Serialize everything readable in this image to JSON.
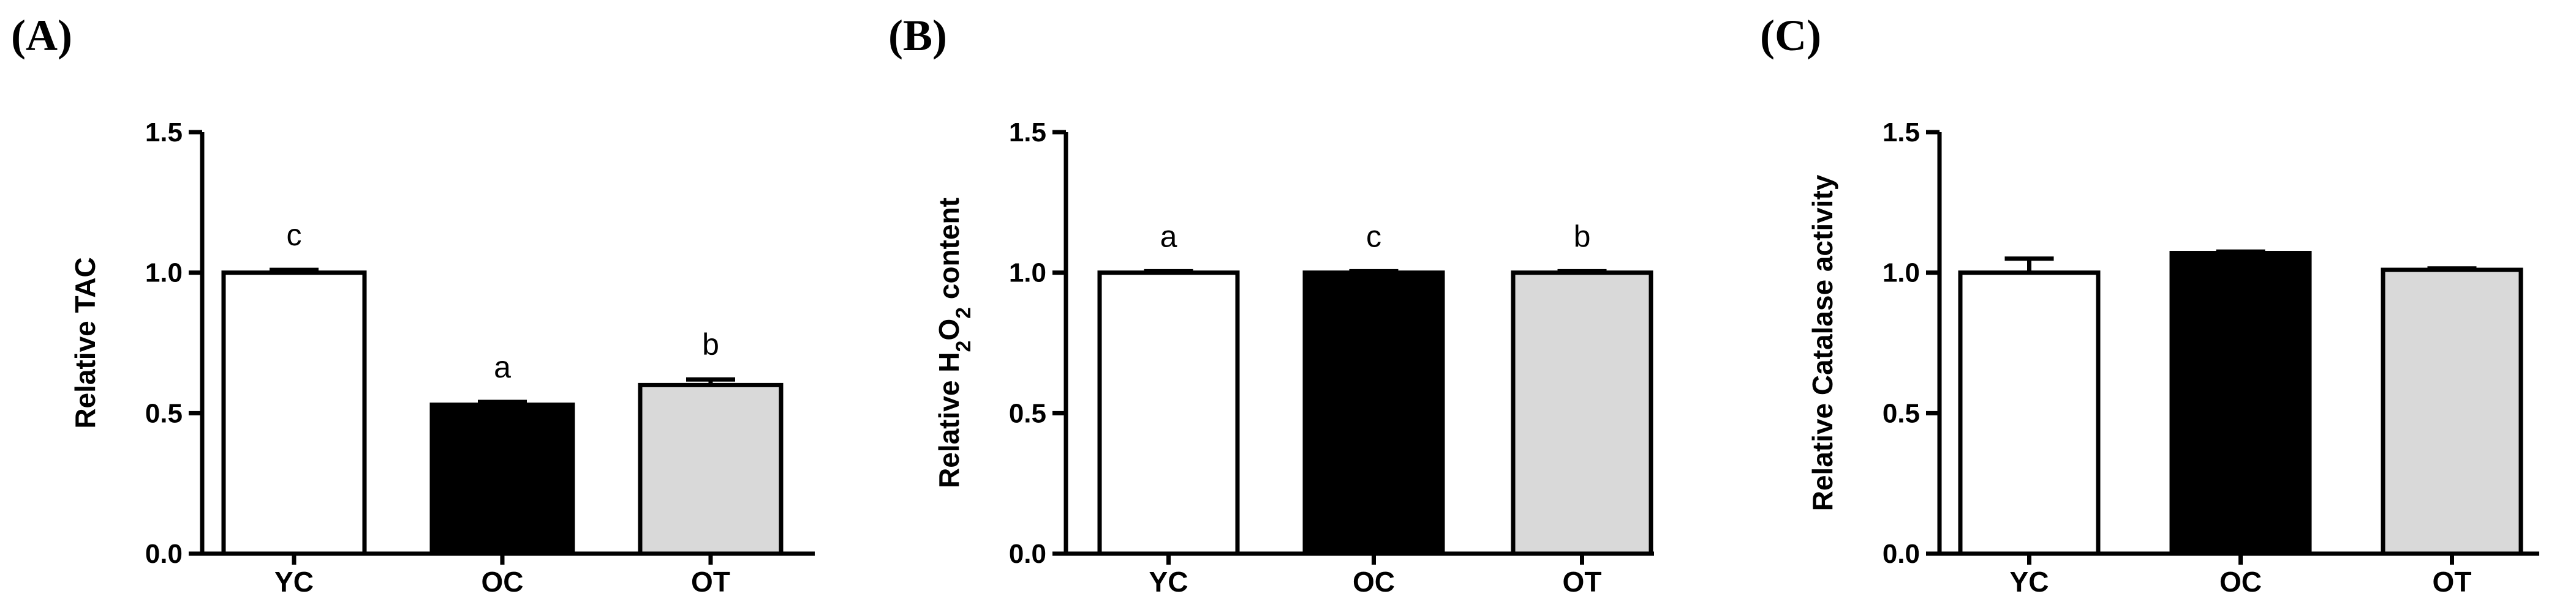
{
  "chart_data": [
    {
      "type": "bar",
      "panel_label": "(A)",
      "categories": [
        "YC",
        "OC",
        "OT"
      ],
      "values": [
        1.0,
        0.53,
        0.6
      ],
      "errors": [
        0.01,
        0.01,
        0.02
      ],
      "bar_colors": [
        "#ffffff",
        "#000000",
        "#d9d9d9"
      ],
      "significance": [
        "c",
        "a",
        "b"
      ],
      "ylabel": "Relative TAC",
      "ylabel_sub": "",
      "ylabel_rest": "",
      "ylim": [
        0,
        1.5
      ],
      "yticks": [
        "0.0",
        "0.5",
        "1.0",
        "1.5"
      ],
      "grid": false
    },
    {
      "type": "bar",
      "panel_label": "(B)",
      "categories": [
        "YC",
        "OC",
        "OT"
      ],
      "values": [
        1.0,
        1.0,
        1.0
      ],
      "errors": [
        0.005,
        0.005,
        0.005
      ],
      "bar_colors": [
        "#ffffff",
        "#000000",
        "#d9d9d9"
      ],
      "significance": [
        "a",
        "c",
        "b"
      ],
      "ylabel": "Relative H",
      "ylabel_sub": "2",
      "ylabel_rest": "O",
      "ylabel_sub2": "2",
      "ylabel_end": " content",
      "ylim": [
        0,
        1.5
      ],
      "yticks": [
        "0.0",
        "0.5",
        "1.0",
        "1.5"
      ],
      "grid": false
    },
    {
      "type": "bar",
      "panel_label": "(C)",
      "categories": [
        "YC",
        "OC",
        "OT"
      ],
      "values": [
        1.0,
        1.07,
        1.01
      ],
      "errors": [
        0.05,
        0.005,
        0.005
      ],
      "bar_colors": [
        "#ffffff",
        "#000000",
        "#d9d9d9"
      ],
      "significance": [
        "",
        "",
        ""
      ],
      "ylabel": "Relative Catalase activity",
      "ylabel_sub": "",
      "ylabel_rest": "",
      "ylim": [
        0,
        1.5
      ],
      "yticks": [
        "0.0",
        "0.5",
        "1.0",
        "1.5"
      ],
      "grid": false
    }
  ]
}
